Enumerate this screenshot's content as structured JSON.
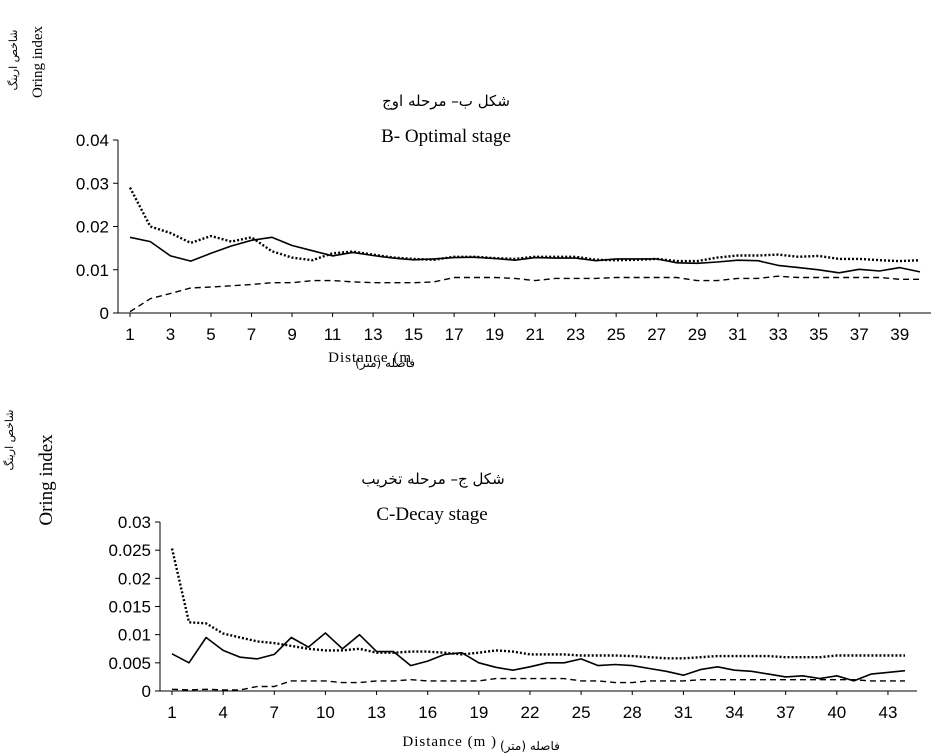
{
  "chart_data": [
    {
      "id": "chartB",
      "type": "line",
      "title_fa": "شکل ب– مرحله اوج",
      "title": "B- Optimal stage",
      "ylabel": "Oring index",
      "ylabel_fa": "شاخص ارینگ",
      "xlabel": "Distance (m",
      "xlabel_fa": "فاصله (متر)",
      "ylim": [
        0,
        0.04
      ],
      "yticks": [
        "0",
        "0.01",
        "0.02",
        "0.03",
        "0.04"
      ],
      "xlim": [
        1,
        40
      ],
      "xticks": [
        1,
        3,
        5,
        7,
        9,
        11,
        13,
        15,
        17,
        19,
        21,
        23,
        25,
        27,
        29,
        31,
        33,
        35,
        37,
        39
      ],
      "grid": false,
      "series": [
        {
          "style": "solid",
          "x_start": 1,
          "values": [
            0.0175,
            0.0165,
            0.0132,
            0.012,
            0.0138,
            0.0155,
            0.0168,
            0.0175,
            0.0156,
            0.0144,
            0.0132,
            0.014,
            0.0133,
            0.0127,
            0.0123,
            0.0125,
            0.0128,
            0.0129,
            0.0126,
            0.0122,
            0.0128,
            0.0127,
            0.0127,
            0.0121,
            0.0125,
            0.0125,
            0.0125,
            0.0116,
            0.0115,
            0.0118,
            0.0122,
            0.0121,
            0.011,
            0.0105,
            0.01,
            0.0093,
            0.0101,
            0.0097,
            0.0105,
            0.0095
          ]
        },
        {
          "style": "dotted",
          "x_start": 1,
          "values": [
            0.029,
            0.02,
            0.0185,
            0.0162,
            0.0178,
            0.0165,
            0.0175,
            0.0143,
            0.0128,
            0.0122,
            0.0138,
            0.0142,
            0.0135,
            0.0128,
            0.0125,
            0.0123,
            0.013,
            0.013,
            0.0127,
            0.0125,
            0.013,
            0.013,
            0.013,
            0.0123,
            0.0122,
            0.0123,
            0.0125,
            0.012,
            0.012,
            0.0128,
            0.0133,
            0.0133,
            0.0135,
            0.013,
            0.0132,
            0.0125,
            0.0125,
            0.0122,
            0.012,
            0.0122
          ]
        },
        {
          "style": "dashed",
          "x_start": 1,
          "values": [
            0.0003,
            0.0033,
            0.0045,
            0.0058,
            0.006,
            0.0063,
            0.0066,
            0.007,
            0.007,
            0.0075,
            0.0075,
            0.0072,
            0.007,
            0.007,
            0.007,
            0.0072,
            0.0082,
            0.0082,
            0.0082,
            0.008,
            0.0075,
            0.008,
            0.008,
            0.008,
            0.0082,
            0.0082,
            0.0082,
            0.0082,
            0.0075,
            0.0075,
            0.008,
            0.008,
            0.0085,
            0.0082,
            0.0082,
            0.0082,
            0.0082,
            0.0082,
            0.0078,
            0.0078
          ]
        }
      ]
    },
    {
      "id": "chartC",
      "type": "line",
      "title_fa": "شکل ج– مرحله تخریب",
      "title": "C-Decay stage",
      "ylabel": "Oring index",
      "ylabel_fa": "شاخص ارینگ",
      "xlabel": "Distance (m )",
      "xlabel_fa": "فاصله (متر)",
      "ylim": [
        0,
        0.03
      ],
      "yticks": [
        "0",
        "0.005",
        "0.01",
        "0.015",
        "0.02",
        "0.025",
        "0.03"
      ],
      "xlim": [
        1,
        44
      ],
      "xticks": [
        1,
        4,
        7,
        10,
        13,
        16,
        19,
        22,
        25,
        28,
        31,
        34,
        37,
        40,
        43
      ],
      "grid": false,
      "series": [
        {
          "style": "solid",
          "x_start": 1,
          "values": [
            0.0066,
            0.005,
            0.0095,
            0.0072,
            0.006,
            0.0057,
            0.0065,
            0.0095,
            0.0078,
            0.0103,
            0.0075,
            0.01,
            0.007,
            0.007,
            0.0045,
            0.0053,
            0.0065,
            0.0068,
            0.005,
            0.0042,
            0.0037,
            0.0043,
            0.005,
            0.005,
            0.0057,
            0.0045,
            0.0047,
            0.0045,
            0.004,
            0.0035,
            0.0028,
            0.0038,
            0.0043,
            0.0037,
            0.0035,
            0.003,
            0.0025,
            0.0027,
            0.0022,
            0.0027,
            0.0018,
            0.003,
            0.0033,
            0.0036
          ]
        },
        {
          "style": "dotted",
          "x_start": 1,
          "values": [
            0.0253,
            0.0122,
            0.012,
            0.0102,
            0.0095,
            0.0088,
            0.0085,
            0.008,
            0.0075,
            0.0072,
            0.0072,
            0.0075,
            0.0068,
            0.0068,
            0.007,
            0.007,
            0.0068,
            0.0065,
            0.0068,
            0.0072,
            0.007,
            0.0065,
            0.0065,
            0.0065,
            0.0063,
            0.0063,
            0.0063,
            0.0062,
            0.006,
            0.0058,
            0.0058,
            0.006,
            0.0062,
            0.0062,
            0.0062,
            0.0062,
            0.006,
            0.006,
            0.006,
            0.0063,
            0.0063,
            0.0063,
            0.0063,
            0.0063
          ]
        },
        {
          "style": "dashed",
          "x_start": 1,
          "values": [
            0.0003,
            0.0002,
            0.0003,
            0.0002,
            0.0002,
            0.0008,
            0.0008,
            0.0018,
            0.0018,
            0.0018,
            0.0015,
            0.0015,
            0.0018,
            0.0018,
            0.002,
            0.0018,
            0.0018,
            0.0018,
            0.0018,
            0.0022,
            0.0022,
            0.0022,
            0.0022,
            0.0022,
            0.0018,
            0.0018,
            0.0015,
            0.0015,
            0.0018,
            0.0018,
            0.0018,
            0.002,
            0.002,
            0.002,
            0.002,
            0.002,
            0.002,
            0.002,
            0.002,
            0.002,
            0.002,
            0.0018,
            0.0018,
            0.0018
          ]
        }
      ]
    }
  ]
}
